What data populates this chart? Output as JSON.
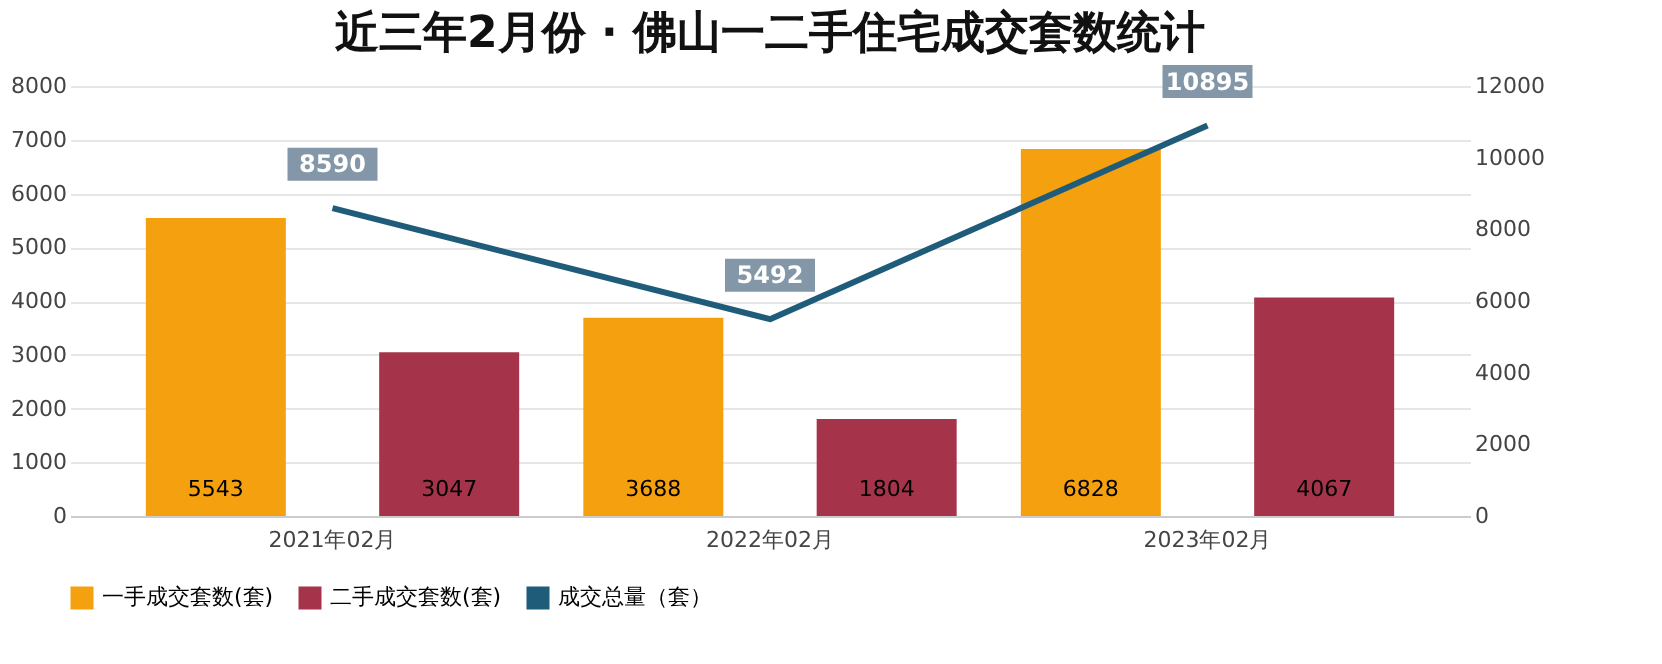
{
  "chart_data": {
    "type": "bar",
    "title": "近三年2月份 · 佛山一二手住宅成交套数统计",
    "categories": [
      "2021年02月",
      "2022年02月",
      "2023年02月"
    ],
    "series": [
      {
        "name": "一手成交套数(套)",
        "color": "#f5a00f",
        "values": [
          5543,
          3688,
          6828
        ]
      },
      {
        "name": "二手成交套数(套)",
        "color": "#a5344a",
        "values": [
          3047,
          1804,
          4067
        ]
      },
      {
        "name": "成交总量（套）",
        "type": "line",
        "axis": "y2",
        "color": "#1f5c7a",
        "values": [
          8590,
          5492,
          10895
        ]
      }
    ],
    "ylim": [
      0,
      8000
    ],
    "yticks": [
      0,
      1000,
      2000,
      3000,
      4000,
      5000,
      6000,
      7000,
      8000
    ],
    "y2lim": [
      0,
      12000
    ],
    "y2ticks": [
      0,
      2000,
      4000,
      6000,
      8000,
      10000,
      12000
    ],
    "data_labels": true,
    "grid": "y",
    "legend": "bottom",
    "marker": "none"
  }
}
